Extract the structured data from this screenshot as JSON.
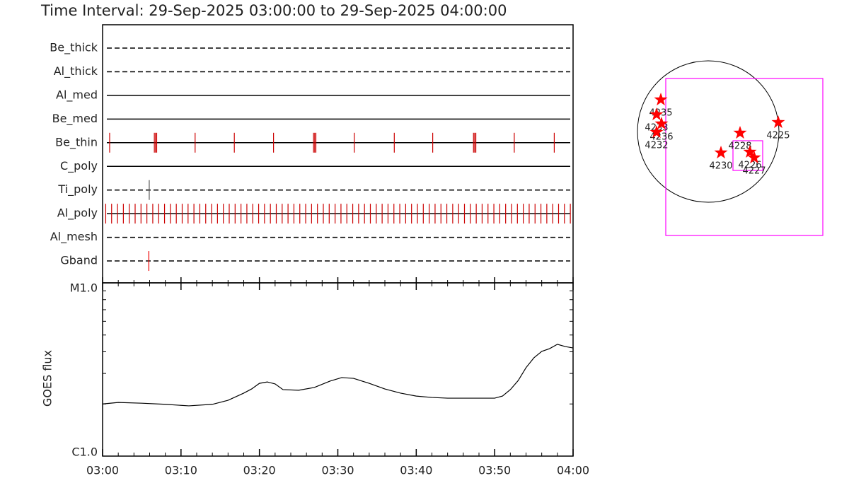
{
  "chart_data": [
    {
      "type": "timeline",
      "title": "Time Interval: 29-Sep-2025 03:00:00 to 29-Sep-2025 04:00:00",
      "xlim": [
        0,
        60
      ],
      "rows": [
        {
          "label": "Be_thick",
          "line": "dashed",
          "events": []
        },
        {
          "label": "Al_thick",
          "line": "dashed",
          "events": []
        },
        {
          "label": "Al_med",
          "line": "solid",
          "events": []
        },
        {
          "label": "Be_med",
          "line": "solid",
          "events": []
        },
        {
          "label": "Be_thin",
          "line": "solid",
          "event_color": "#cc0000",
          "events": [
            0.9,
            6.6,
            6.75,
            6.9,
            11.8,
            16.8,
            21.8,
            26.9,
            27.05,
            27.2,
            32.1,
            37.2,
            42.1,
            47.3,
            47.45,
            47.6,
            52.5,
            57.6
          ]
        },
        {
          "label": "C_poly",
          "line": "solid",
          "events": []
        },
        {
          "label": "Ti_poly",
          "line": "dashed",
          "event_color": "#555555",
          "events": [
            5.95
          ]
        },
        {
          "label": "Al_poly",
          "line": "solid",
          "event_color": "#cc0000",
          "events": [
            0.4,
            1.15,
            1.9,
            2.65,
            3.4,
            4.15,
            4.9,
            5.65,
            6.4,
            7.15,
            7.9,
            8.65,
            9.4,
            10.15,
            10.9,
            11.65,
            12.4,
            13.15,
            13.9,
            14.65,
            15.4,
            16.15,
            16.9,
            17.65,
            18.4,
            19.15,
            19.9,
            20.65,
            21.4,
            22.15,
            22.9,
            23.65,
            24.4,
            25.15,
            25.9,
            26.65,
            27.4,
            28.15,
            28.9,
            29.65,
            30.4,
            31.15,
            31.9,
            32.65,
            33.4,
            34.15,
            34.9,
            35.65,
            36.4,
            37.15,
            37.9,
            38.65,
            39.4,
            40.15,
            40.9,
            41.65,
            42.4,
            43.15,
            43.9,
            44.65,
            45.4,
            46.15,
            46.9,
            47.65,
            48.4,
            49.15,
            49.9,
            50.65,
            51.4,
            52.15,
            52.9,
            53.65,
            54.4,
            55.15,
            55.9,
            56.65,
            57.4,
            58.15,
            58.9,
            59.65
          ]
        },
        {
          "label": "Al_mesh",
          "line": "dashed",
          "events": []
        },
        {
          "label": "Gband",
          "line": "dashed",
          "event_color": "#ee0000",
          "events": [
            5.9
          ]
        }
      ]
    },
    {
      "type": "line",
      "ylabel": "GOES flux",
      "color": "#000000",
      "log_y": true,
      "x": [
        0,
        2,
        5,
        8,
        11,
        14,
        16,
        18,
        19,
        20,
        21,
        22,
        23,
        25,
        27,
        29,
        30.5,
        32,
        34,
        36,
        38,
        40,
        42,
        44,
        46,
        48,
        50,
        51,
        52,
        53,
        54,
        55,
        56,
        57,
        58,
        59,
        60
      ],
      "values": [
        2e-06,
        2.04e-06,
        2.02e-06,
        1.99e-06,
        1.95e-06,
        1.99e-06,
        2.1e-06,
        2.31e-06,
        2.44e-06,
        2.63e-06,
        2.68e-06,
        2.61e-06,
        2.42e-06,
        2.4e-06,
        2.49e-06,
        2.71e-06,
        2.84e-06,
        2.81e-06,
        2.63e-06,
        2.44e-06,
        2.31e-06,
        2.22e-06,
        2.18e-06,
        2.16e-06,
        2.16e-06,
        2.16e-06,
        2.16e-06,
        2.22e-06,
        2.42e-06,
        2.73e-06,
        3.24e-06,
        3.69e-06,
        4.02e-06,
        4.17e-06,
        4.42e-06,
        4.29e-06,
        4.21e-06
      ],
      "xlim": [
        0,
        60
      ],
      "xticks": [
        {
          "value": 0,
          "label": "03:00"
        },
        {
          "value": 10,
          "label": "03:10"
        },
        {
          "value": 20,
          "label": "03:20"
        },
        {
          "value": 30,
          "label": "03:30"
        },
        {
          "value": 40,
          "label": "03:40"
        },
        {
          "value": 50,
          "label": "03:50"
        },
        {
          "value": 60,
          "label": "04:00"
        }
      ],
      "x_minor_ticks": [
        2,
        4,
        6,
        8,
        12,
        14,
        16,
        18,
        22,
        24,
        26,
        28,
        32,
        34,
        36,
        38,
        42,
        44,
        46,
        48,
        52,
        54,
        56,
        58
      ],
      "ylim": [
        1e-06,
        1e-05
      ],
      "yticks": [
        {
          "value": 1e-06,
          "label": "C1.0"
        },
        {
          "value": 1e-05,
          "label": "M1.0"
        }
      ],
      "y_minor_ticks": [
        2e-06,
        3e-06,
        4e-06,
        5e-06,
        6e-06,
        7e-06,
        8e-06,
        9e-06
      ]
    },
    {
      "type": "scatter",
      "color": "#ff0000",
      "points": [
        {
          "label": "4235",
          "x": -643,
          "y": 432
        },
        {
          "label": "4233",
          "x": -701,
          "y": 230
        },
        {
          "label": "4236",
          "x": -634,
          "y": 106
        },
        {
          "label": "4232",
          "x": -701,
          "y": -10
        },
        {
          "label": "4225",
          "x": 950,
          "y": 125
        },
        {
          "label": "4228",
          "x": 432,
          "y": -19
        },
        {
          "label": "4230",
          "x": 173,
          "y": -288
        },
        {
          "label": "4226",
          "x": 566,
          "y": -278
        },
        {
          "label": "4227",
          "x": 624,
          "y": -355
        }
      ]
    }
  ]
}
